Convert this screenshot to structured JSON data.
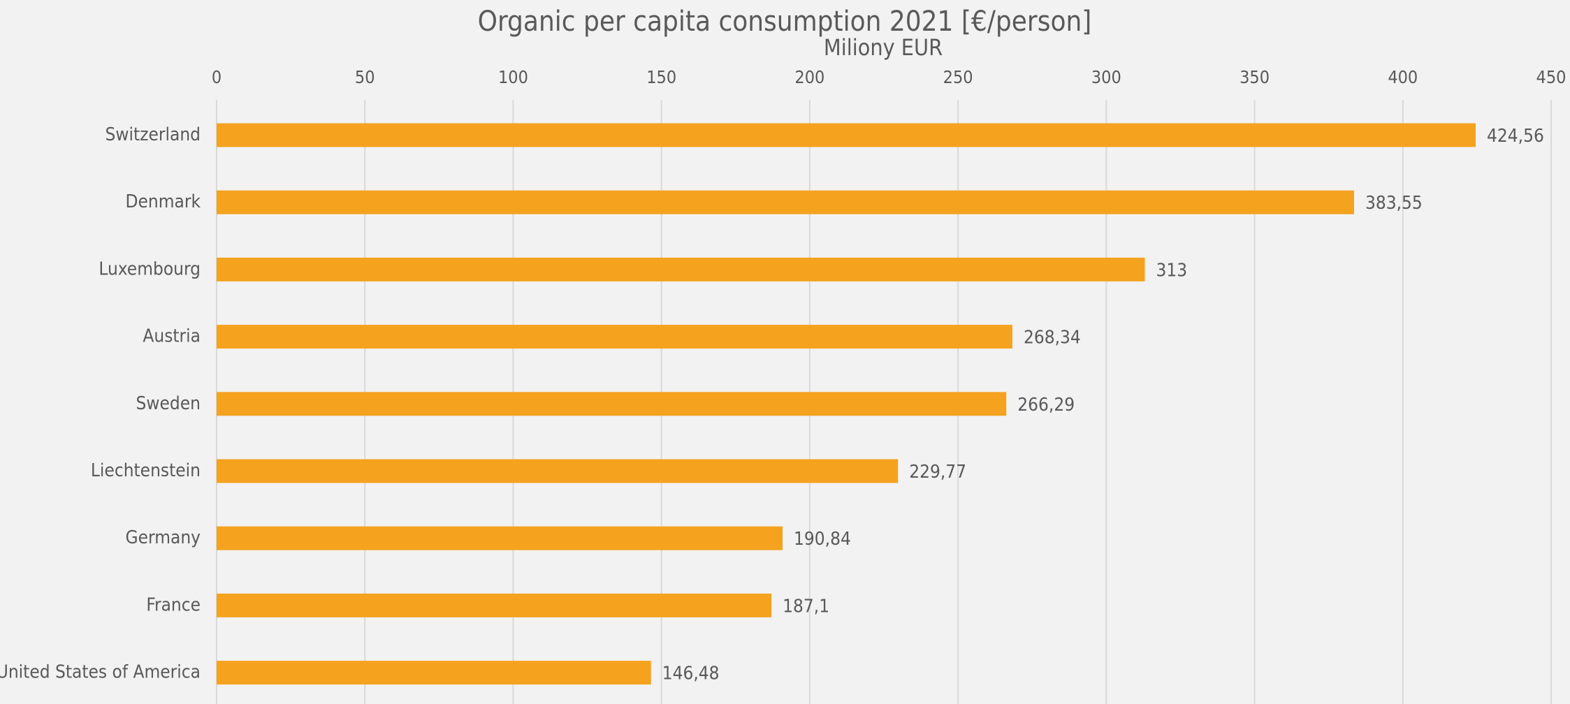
{
  "chart_data": {
    "type": "bar",
    "orientation": "horizontal",
    "title": "Organic per capita consumption 2021 [€/person]",
    "x_axis_label": "Miliony EUR",
    "categories": [
      "Switzerland",
      "Denmark",
      "Luxembourg",
      "Austria",
      "Sweden",
      "Liechtenstein",
      "Germany",
      "France",
      "United States of America"
    ],
    "values": [
      424.56,
      383.55,
      313,
      268.34,
      266.29,
      229.77,
      190.84,
      187.1,
      146.48
    ],
    "value_labels": [
      "424,56",
      "383,55",
      "313",
      "268,34",
      "266,29",
      "229,77",
      "190,84",
      "187,1",
      "146,48"
    ],
    "color": "#f5a21f",
    "xlim": [
      0,
      450
    ],
    "xticks": [
      0,
      50,
      100,
      150,
      200,
      250,
      300,
      350,
      400,
      450
    ],
    "grid": true
  }
}
